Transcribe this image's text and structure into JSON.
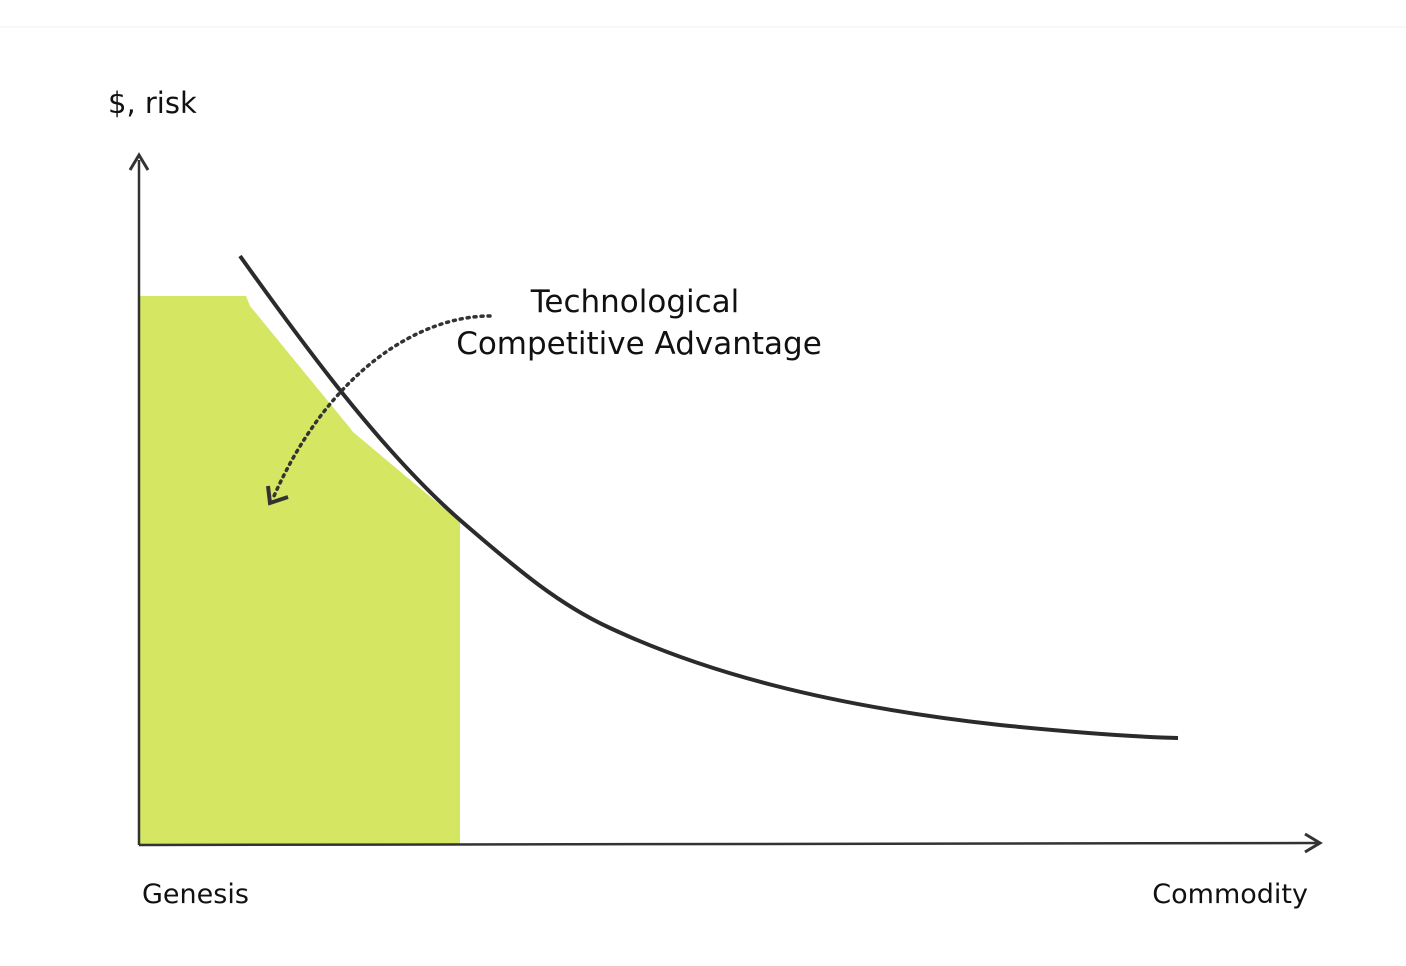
{
  "axes": {
    "y_label": "$, risk",
    "x_start_label": "Genesis",
    "x_end_label": "Commodity"
  },
  "annotation": {
    "lines": [
      "Technological",
      "Competitive Advantage"
    ]
  }
}
